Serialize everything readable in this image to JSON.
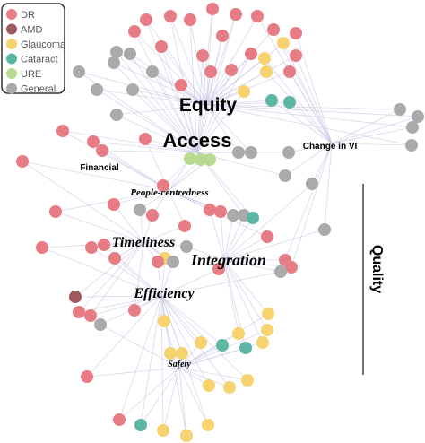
{
  "legend": [
    {
      "name": "DR",
      "color": "#e77c85"
    },
    {
      "name": "AMD",
      "color": "#9e5a5c"
    },
    {
      "name": "Glaucoma",
      "color": "#f6d36e"
    },
    {
      "name": "Cataract",
      "color": "#5db6a3"
    },
    {
      "name": "URE",
      "color": "#b8da90"
    },
    {
      "name": "General",
      "color": "#aaaaaa"
    }
  ],
  "labels": {
    "equity": "Equity",
    "access": "Access",
    "change_in_vi": "Change in VI",
    "financial": "Financial",
    "people_centredness": "People-centredness",
    "timeliness": "Timeliness",
    "integration": "Integration",
    "efficiency": "Efficiency",
    "safety": "Safety",
    "quality": "Quality"
  }
}
